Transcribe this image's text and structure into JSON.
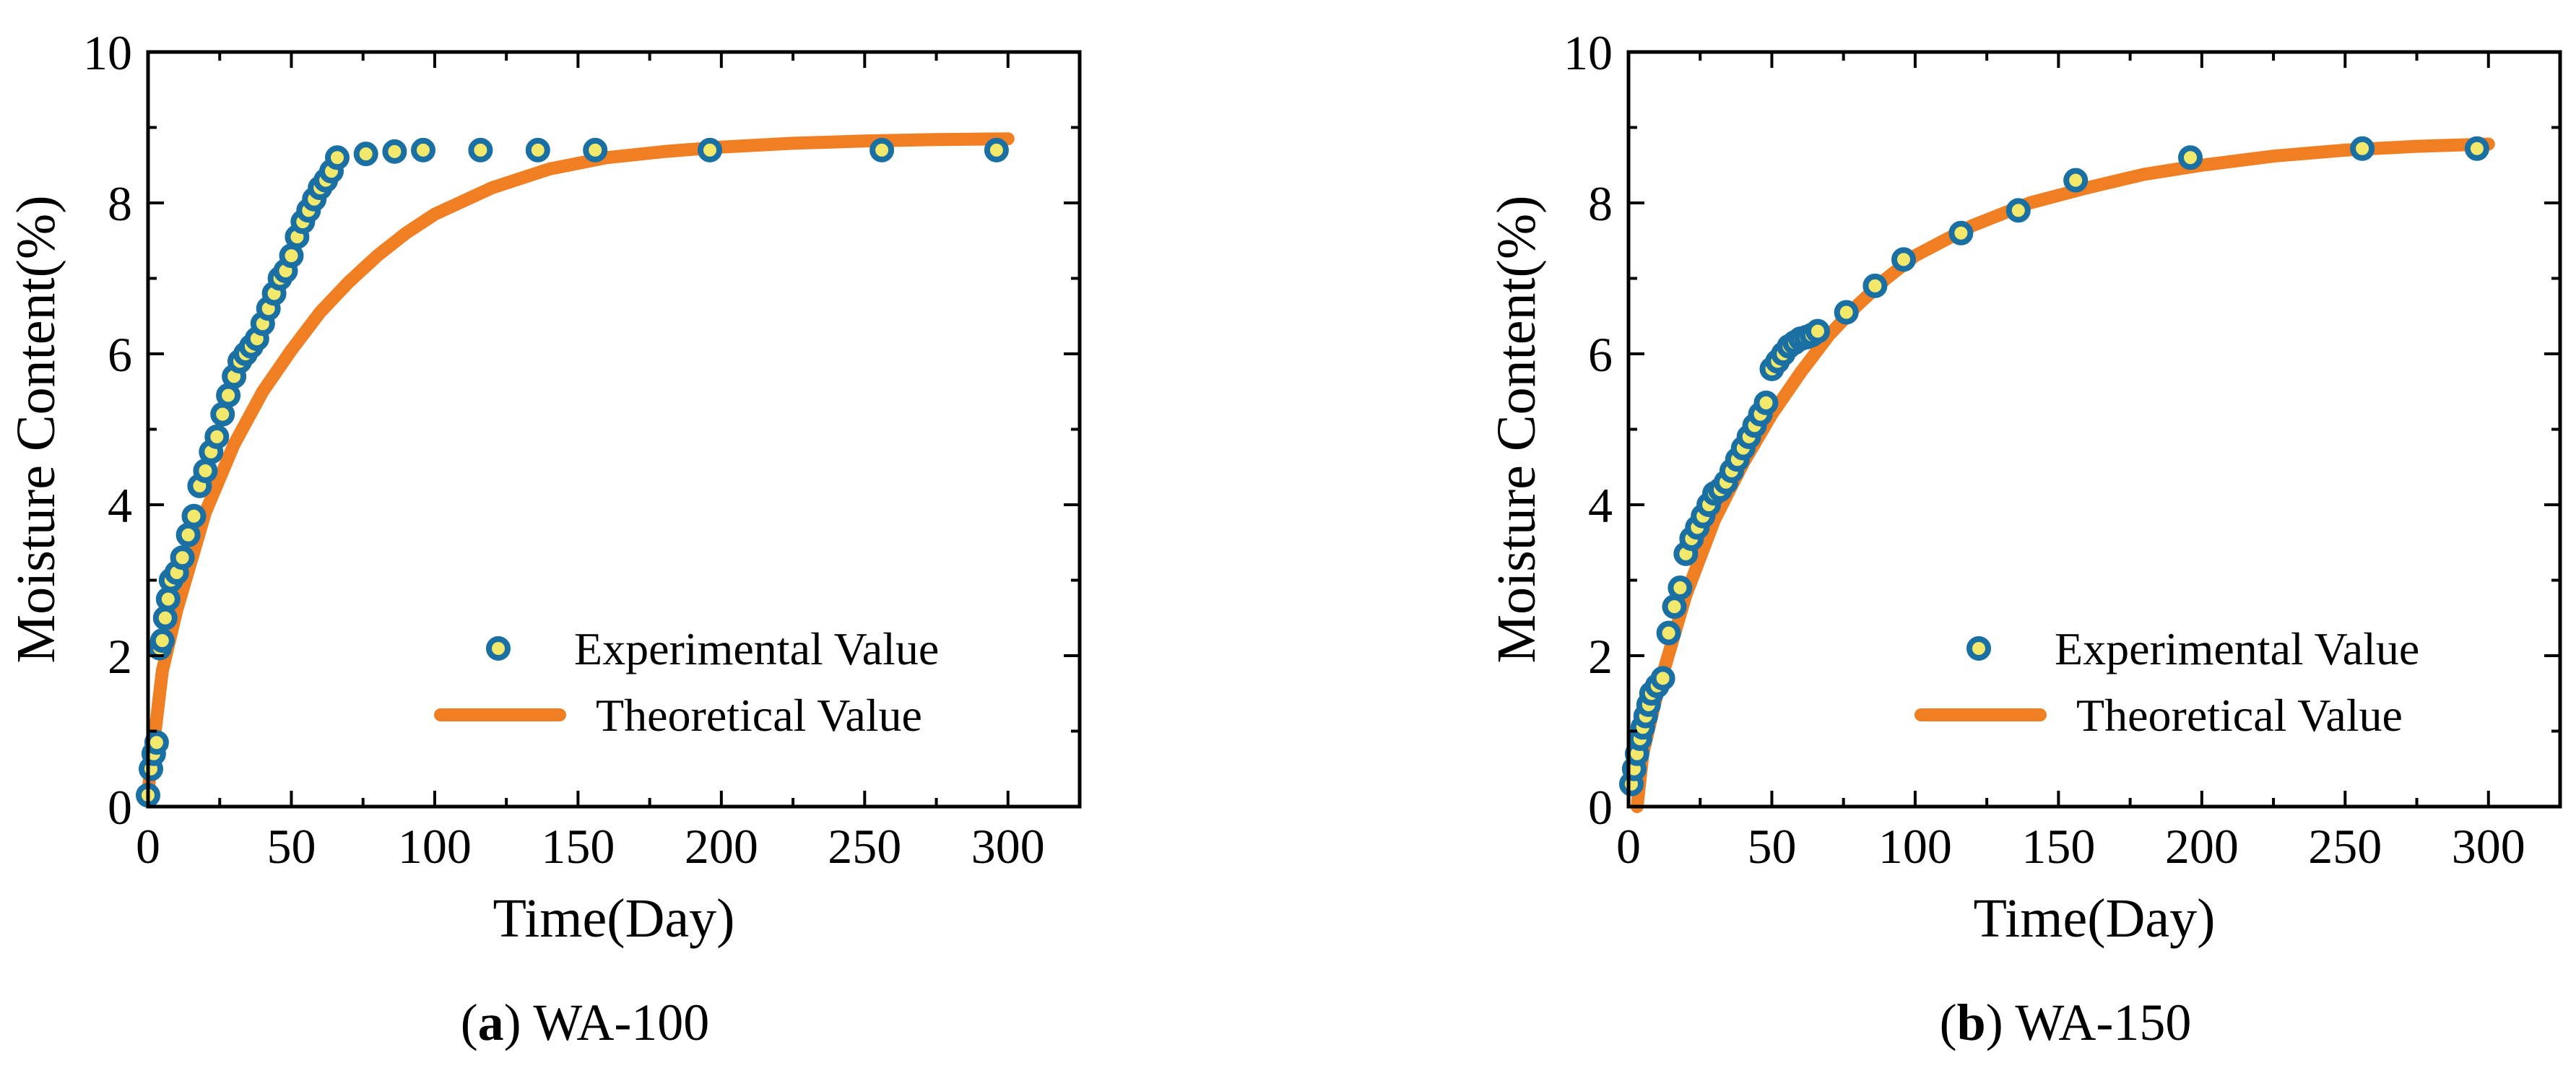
{
  "chart_data": [
    {
      "type": "scatter",
      "caption_letter": "a",
      "caption_text": " WA-100",
      "xlabel": "Time(Day)",
      "ylabel": "Moisture Content(%)",
      "xlim": [
        0,
        325
      ],
      "ylim": [
        0,
        10
      ],
      "xticks": [
        0,
        50,
        100,
        150,
        200,
        250,
        300
      ],
      "xtick_labels": [
        "0",
        "50",
        "100",
        "150",
        "200",
        "250",
        "300"
      ],
      "yticks": [
        0,
        2,
        4,
        6,
        8,
        10
      ],
      "ytick_labels": [
        "0",
        "2",
        "4",
        "6",
        "8",
        "10"
      ],
      "legend_position": "bottom-right",
      "grid": false,
      "series": [
        {
          "name": "Experimental Value",
          "kind": "scatter",
          "color": "#1a6fa3",
          "fill": "#f2e86b",
          "x": [
            0,
            1,
            2,
            3,
            4,
            5,
            6,
            7,
            8,
            10,
            12,
            14,
            16,
            18,
            20,
            22,
            24,
            26,
            28,
            30,
            32,
            34,
            36,
            38,
            40,
            42,
            44,
            46,
            48,
            50,
            52,
            54,
            56,
            58,
            60,
            62,
            64,
            66,
            76,
            86,
            96,
            116,
            136,
            156,
            196,
            256,
            296
          ],
          "y": [
            0.15,
            0.5,
            0.7,
            0.85,
            2.1,
            2.2,
            2.5,
            2.75,
            3.0,
            3.1,
            3.3,
            3.6,
            3.85,
            4.25,
            4.45,
            4.7,
            4.9,
            5.2,
            5.45,
            5.7,
            5.9,
            6.0,
            6.1,
            6.2,
            6.4,
            6.6,
            6.8,
            7.0,
            7.1,
            7.3,
            7.55,
            7.75,
            7.9,
            8.05,
            8.2,
            8.3,
            8.42,
            8.6,
            8.65,
            8.68,
            8.7,
            8.7,
            8.7,
            8.7,
            8.7,
            8.7,
            8.7
          ]
        },
        {
          "name": "Theoretical Value",
          "kind": "line",
          "color": "#f07f24",
          "x": [
            0,
            5,
            10,
            20,
            30,
            40,
            50,
            60,
            70,
            80,
            90,
            100,
            120,
            140,
            160,
            180,
            200,
            225,
            250,
            275,
            300
          ],
          "y": [
            0.2,
            1.8,
            2.6,
            3.9,
            4.8,
            5.5,
            6.05,
            6.55,
            6.95,
            7.3,
            7.6,
            7.85,
            8.2,
            8.45,
            8.6,
            8.68,
            8.74,
            8.79,
            8.82,
            8.84,
            8.85
          ]
        }
      ]
    },
    {
      "type": "scatter",
      "caption_letter": "b",
      "caption_text": " WA-150",
      "xlabel": "Time(Day)",
      "ylabel": "Moisture Content(%)",
      "xlim": [
        0,
        325
      ],
      "ylim": [
        0,
        10
      ],
      "xticks": [
        0,
        50,
        100,
        150,
        200,
        250,
        300
      ],
      "xtick_labels": [
        "0",
        "50",
        "100",
        "150",
        "200",
        "250",
        "300"
      ],
      "yticks": [
        0,
        2,
        4,
        6,
        8,
        10
      ],
      "ytick_labels": [
        "0",
        "2",
        "4",
        "6",
        "8",
        "10"
      ],
      "legend_position": "bottom-right",
      "grid": false,
      "series": [
        {
          "name": "Experimental Value",
          "kind": "scatter",
          "color": "#1a6fa3",
          "fill": "#f2e86b",
          "x": [
            1,
            2,
            3,
            4,
            5,
            6,
            7,
            8,
            10,
            12,
            14,
            16,
            18,
            20,
            22,
            24,
            26,
            28,
            30,
            32,
            34,
            36,
            38,
            40,
            42,
            44,
            46,
            48,
            50,
            52,
            54,
            56,
            58,
            60,
            62,
            64,
            66,
            76,
            86,
            96,
            116,
            136,
            156,
            196,
            256,
            296
          ],
          "y": [
            0.3,
            0.5,
            0.7,
            0.9,
            1.05,
            1.2,
            1.35,
            1.5,
            1.6,
            1.7,
            2.3,
            2.65,
            2.9,
            3.35,
            3.55,
            3.7,
            3.85,
            4.0,
            4.15,
            4.2,
            4.3,
            4.45,
            4.6,
            4.75,
            4.9,
            5.05,
            5.2,
            5.35,
            5.8,
            5.9,
            6.0,
            6.1,
            6.15,
            6.2,
            6.22,
            6.25,
            6.3,
            6.55,
            6.9,
            7.25,
            7.6,
            7.9,
            8.3,
            8.6,
            8.72,
            8.72
          ]
        },
        {
          "name": "Theoretical Value",
          "kind": "line",
          "color": "#f07f24",
          "x": [
            3,
            5,
            10,
            20,
            30,
            40,
            50,
            60,
            70,
            80,
            90,
            100,
            120,
            140,
            160,
            180,
            200,
            225,
            250,
            275,
            300
          ],
          "y": [
            0,
            0.7,
            1.5,
            2.8,
            3.8,
            4.55,
            5.2,
            5.75,
            6.25,
            6.65,
            7.0,
            7.3,
            7.7,
            8.0,
            8.2,
            8.38,
            8.5,
            8.62,
            8.7,
            8.75,
            8.78
          ]
        }
      ]
    }
  ]
}
